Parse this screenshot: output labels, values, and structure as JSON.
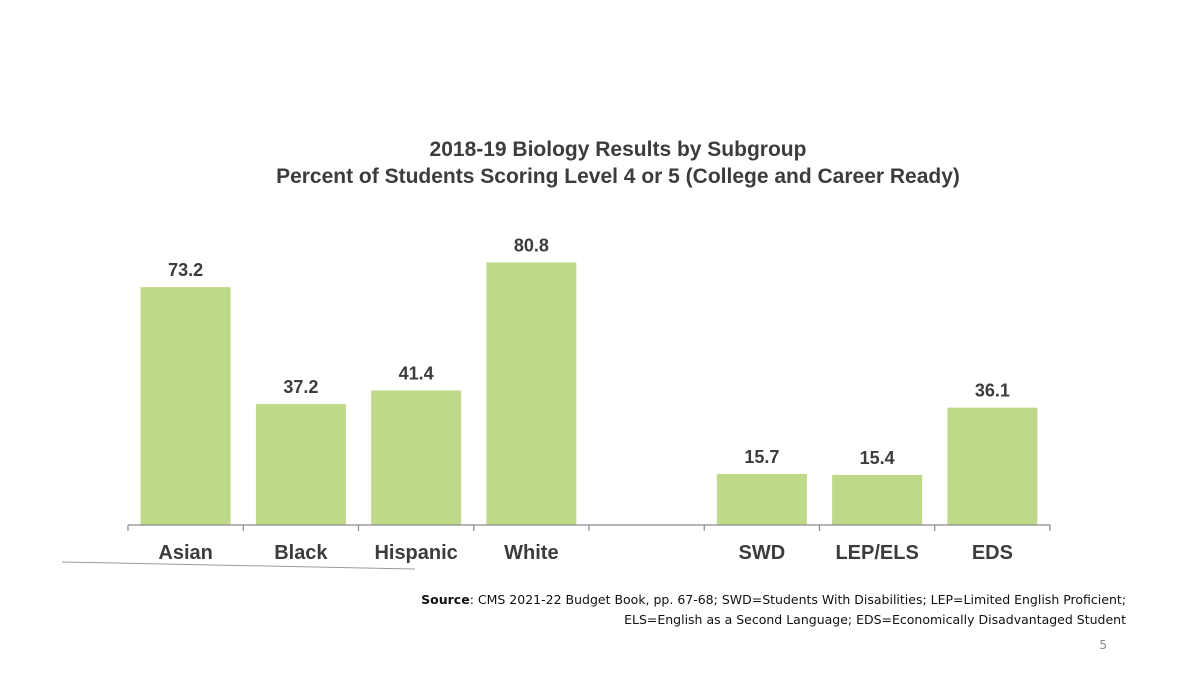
{
  "slide": {
    "source_label": "Source",
    "source_line1": ": CMS 2021-22 Budget Book, pp. 67-68; SWD=Students With Disabilities; LEP=Limited English Proficient;",
    "source_line2": "ELS=English as a Second Language; EDS=Economically Disadvantaged Student",
    "page_number": "5"
  },
  "colors": {
    "bar": "#bfd98b",
    "axis": "#8a8a8a",
    "text": "#3c3c3c"
  },
  "chart_data": {
    "type": "bar",
    "title": "2018-19 Biology Results by Subgroup",
    "subtitle": "Percent of Students Scoring Level 4 or 5 (College and Career Ready)",
    "categories": [
      "Asian",
      "Black",
      "Hispanic",
      "White",
      "",
      "SWD",
      "LEP/ELS",
      "EDS"
    ],
    "values": [
      73.2,
      37.2,
      41.4,
      80.8,
      null,
      15.7,
      15.4,
      36.1
    ],
    "ylim": [
      0,
      100
    ],
    "grid": false,
    "legend": "none",
    "xlabel": "",
    "ylabel": ""
  }
}
